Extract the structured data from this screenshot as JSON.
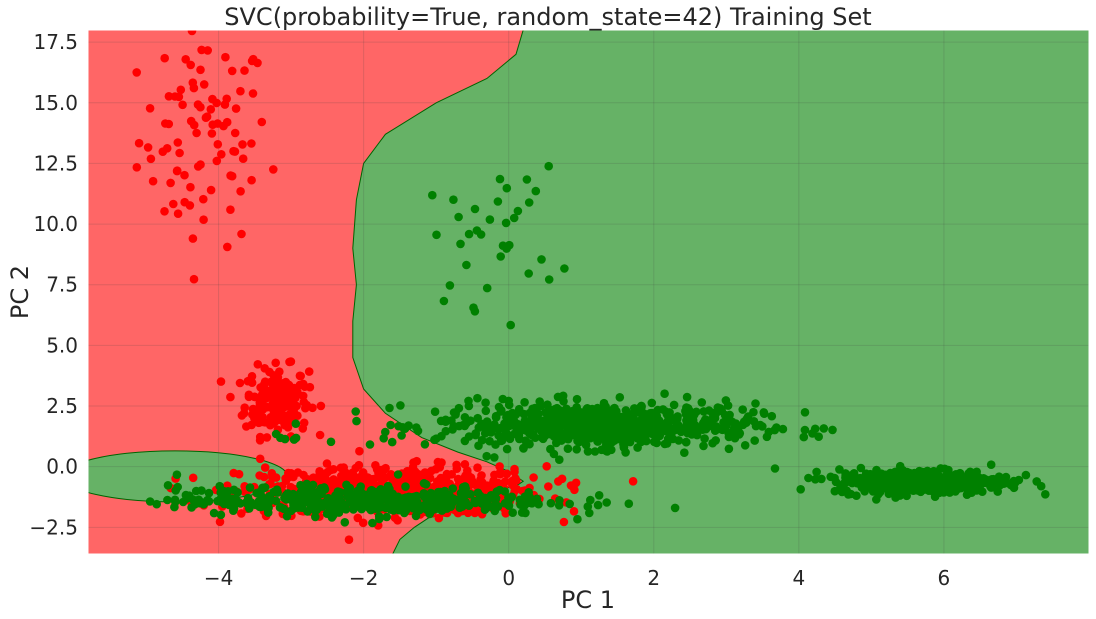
{
  "chart_data": {
    "type": "scatter",
    "title": "SVC(probability=True, random_state=42) Training Set",
    "xlabel": "PC 1",
    "ylabel": "PC 2",
    "xlim": [
      -5.8,
      8.0
    ],
    "ylim": [
      -3.6,
      18.0
    ],
    "xticks": [
      -4,
      -2,
      0,
      2,
      4,
      6
    ],
    "xtick_labels": [
      "−4",
      "−2",
      "0",
      "2",
      "4",
      "6"
    ],
    "yticks": [
      -2.5,
      0.0,
      2.5,
      5.0,
      7.5,
      10.0,
      12.5,
      15.0,
      17.5
    ],
    "ytick_labels": [
      "−2.5",
      "0.0",
      "2.5",
      "5.0",
      "7.5",
      "10.0",
      "12.5",
      "15.0",
      "17.5"
    ],
    "grid": true,
    "colors": {
      "region_class0": "#ff6666",
      "region_class1": "#66b266",
      "point_class0": "#ff0000",
      "point_class1": "#008000"
    },
    "series": [
      {
        "class": 0,
        "color": "#ff0000",
        "clusters": [
          {
            "cx": -4.2,
            "cy": 13.5,
            "sx": 0.45,
            "sy": 2.2,
            "n": 90
          },
          {
            "cx": -3.2,
            "cy": 2.7,
            "sx": 0.22,
            "sy": 0.7,
            "n": 180
          },
          {
            "cx": -1.6,
            "cy": -1.0,
            "sx": 1.05,
            "sy": 0.5,
            "n": 650
          }
        ]
      },
      {
        "class": 1,
        "color": "#008000",
        "clusters": [
          {
            "cx": -0.2,
            "cy": 9.5,
            "sx": 0.45,
            "sy": 1.4,
            "n": 35
          },
          {
            "cx": 1.2,
            "cy": 1.7,
            "sx": 1.1,
            "sy": 0.45,
            "n": 700
          },
          {
            "cx": 5.7,
            "cy": -0.6,
            "sx": 0.6,
            "sy": 0.25,
            "n": 420
          },
          {
            "cx": -2.0,
            "cy": -1.4,
            "sx": 1.3,
            "sy": 0.3,
            "n": 450
          },
          {
            "cx": -3.1,
            "cy": 1.3,
            "sx": 0.1,
            "sy": 0.2,
            "n": 5
          }
        ]
      }
    ],
    "decision_boundary": [
      [
        0.2,
        18.0
      ],
      [
        0.1,
        17.0
      ],
      [
        -0.3,
        16.0
      ],
      [
        -1.0,
        15.0
      ],
      [
        -1.7,
        13.7
      ],
      [
        -2.0,
        12.5
      ],
      [
        -2.1,
        11.0
      ],
      [
        -2.15,
        9.0
      ],
      [
        -2.1,
        7.5
      ],
      [
        -2.15,
        6.0
      ],
      [
        -2.15,
        4.5
      ],
      [
        -2.0,
        3.2
      ],
      [
        -1.7,
        2.2
      ],
      [
        -1.2,
        1.2
      ],
      [
        -0.7,
        0.6
      ],
      [
        -0.3,
        0.2
      ],
      [
        0.0,
        -0.2
      ],
      [
        0.2,
        -0.6
      ],
      [
        0.1,
        -0.8
      ],
      [
        -0.1,
        -0.9
      ],
      [
        -0.6,
        -1.4
      ],
      [
        -1.0,
        -1.9
      ],
      [
        -1.3,
        -2.5
      ],
      [
        -1.5,
        -3.0
      ],
      [
        -1.6,
        -3.6
      ]
    ],
    "island_class1": {
      "cx": -4.6,
      "cy": -0.4,
      "rx": 1.55,
      "ry": 1.05
    }
  }
}
